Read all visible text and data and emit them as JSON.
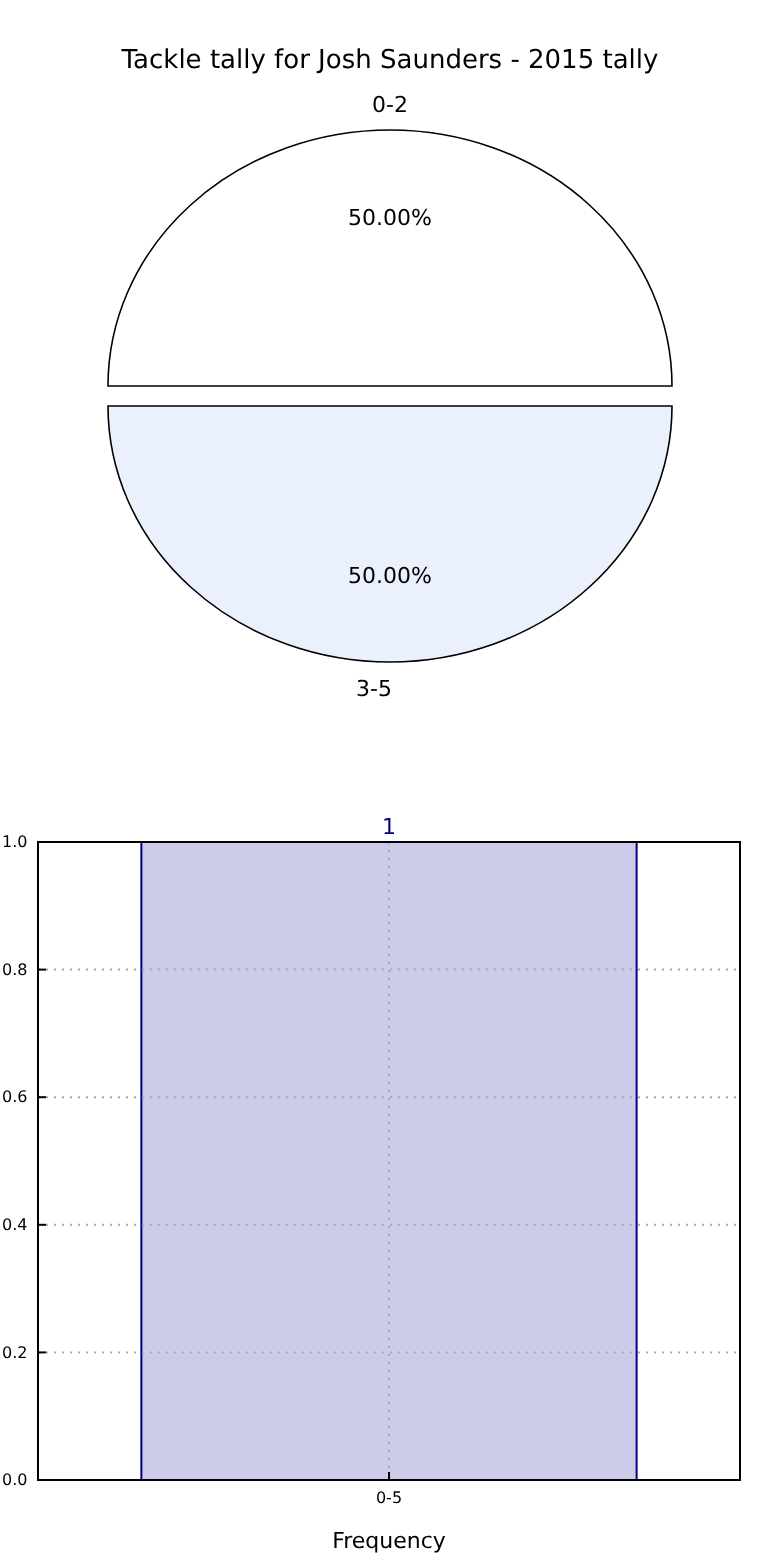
{
  "chart_data": [
    {
      "type": "pie",
      "title": "Tackle tally for Josh Saunders - 2015 tally",
      "categories": [
        "0-2",
        "3-5"
      ],
      "values": [
        50,
        50
      ],
      "colors": [
        "#ffffff",
        "#eaf0fc"
      ],
      "value_labels": [
        "50.00%",
        "50.00%"
      ]
    },
    {
      "type": "bar",
      "categories": [
        "0-5"
      ],
      "values": [
        1
      ],
      "color": "#ccccea",
      "data_labels": true,
      "xlabel": "Frequency",
      "ylim": [
        0,
        1
      ],
      "yticks": [
        {
          "value": 0,
          "label": "0.0"
        },
        {
          "value": 0.2,
          "label": "0.2"
        },
        {
          "value": 0.4,
          "label": "0.4"
        },
        {
          "value": 0.6,
          "label": "0.6"
        },
        {
          "value": 0.8,
          "label": "0.8"
        },
        {
          "value": 1,
          "label": "1.0"
        }
      ],
      "grid": true
    }
  ]
}
